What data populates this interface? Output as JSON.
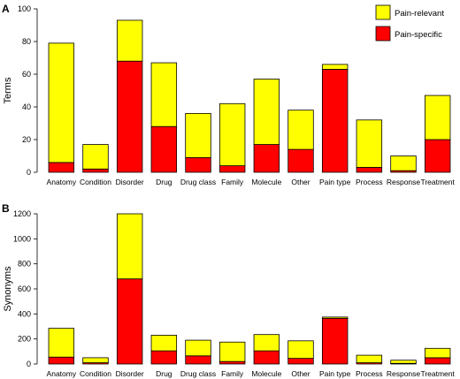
{
  "chart_data": [
    {
      "panel": "A",
      "type": "bar",
      "stacked": true,
      "ylabel": "Terms",
      "ylim": [
        0,
        100
      ],
      "yticks": [
        0,
        20,
        40,
        60,
        80,
        100
      ],
      "categories": [
        "Anatomy",
        "Condition",
        "Disorder",
        "Drug",
        "Drug class",
        "Family",
        "Molecule",
        "Other",
        "Pain type",
        "Process",
        "Response",
        "Treatment"
      ],
      "series": [
        {
          "name": "Pain-specific",
          "color": "#ff0000",
          "values": [
            6,
            2,
            68,
            28,
            9,
            4,
            17,
            14,
            63,
            3,
            1,
            20
          ]
        },
        {
          "name": "Pain-relevant",
          "color": "#ffff00",
          "values": [
            73,
            15,
            25,
            39,
            27,
            38,
            40,
            24,
            3,
            29,
            9,
            27
          ]
        }
      ],
      "legend": {
        "placement": "top-right"
      }
    },
    {
      "panel": "B",
      "type": "bar",
      "stacked": true,
      "ylabel": "Synonyms",
      "ylim": [
        0,
        1200
      ],
      "yticks": [
        0,
        200,
        400,
        600,
        800,
        1000,
        1200
      ],
      "categories": [
        "Anatomy",
        "Condition",
        "Disorder",
        "Drug",
        "Drug class",
        "Family",
        "Molecule",
        "Other",
        "Pain type",
        "Process",
        "Response",
        "Treatment"
      ],
      "series": [
        {
          "name": "Pain-specific",
          "color": "#ff0000",
          "values": [
            55,
            10,
            680,
            105,
            65,
            20,
            105,
            45,
            365,
            10,
            5,
            50
          ]
        },
        {
          "name": "Pain-relevant",
          "color": "#ffff00",
          "values": [
            230,
            40,
            520,
            125,
            125,
            155,
            130,
            140,
            10,
            60,
            25,
            75
          ]
        }
      ]
    }
  ]
}
